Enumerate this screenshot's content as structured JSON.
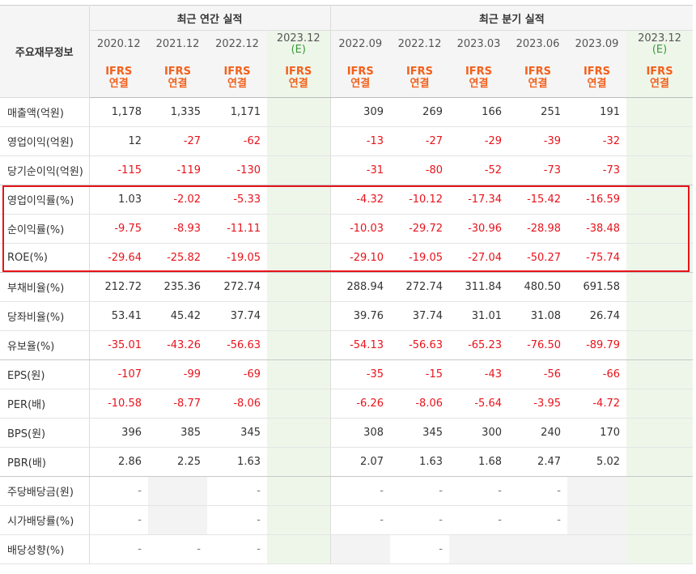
{
  "corner_label": "주요재무정보",
  "groups": {
    "annual": "최근 연간 실적",
    "quarterly": "최근 분기 실적"
  },
  "periods": [
    {
      "date": "2020.12",
      "est": "",
      "type1": "IFRS",
      "type2": "연결",
      "estimate": false
    },
    {
      "date": "2021.12",
      "est": "",
      "type1": "IFRS",
      "type2": "연결",
      "estimate": false
    },
    {
      "date": "2022.12",
      "est": "",
      "type1": "IFRS",
      "type2": "연결",
      "estimate": false
    },
    {
      "date": "2023.12",
      "est": "(E)",
      "type1": "IFRS",
      "type2": "연결",
      "estimate": true
    },
    {
      "date": "2022.09",
      "est": "",
      "type1": "IFRS",
      "type2": "연결",
      "estimate": false
    },
    {
      "date": "2022.12",
      "est": "",
      "type1": "IFRS",
      "type2": "연결",
      "estimate": false
    },
    {
      "date": "2023.03",
      "est": "",
      "type1": "IFRS",
      "type2": "연결",
      "estimate": false
    },
    {
      "date": "2023.06",
      "est": "",
      "type1": "IFRS",
      "type2": "연결",
      "estimate": false
    },
    {
      "date": "2023.09",
      "est": "",
      "type1": "IFRS",
      "type2": "연결",
      "estimate": false
    },
    {
      "date": "2023.12",
      "est": "(E)",
      "type1": "IFRS",
      "type2": "연결",
      "estimate": true
    }
  ],
  "rows": [
    {
      "label": "매출액(억원)",
      "values": [
        "1,178",
        "1,335",
        "1,171",
        "",
        "309",
        "269",
        "166",
        "251",
        "191",
        ""
      ]
    },
    {
      "label": "영업이익(억원)",
      "values": [
        "12",
        "-27",
        "-62",
        "",
        "-13",
        "-27",
        "-29",
        "-39",
        "-32",
        ""
      ]
    },
    {
      "label": "당기순이익(억원)",
      "values": [
        "-115",
        "-119",
        "-130",
        "",
        "-31",
        "-80",
        "-52",
        "-73",
        "-73",
        ""
      ]
    },
    {
      "label": "영업이익률(%)",
      "values": [
        "1.03",
        "-2.02",
        "-5.33",
        "",
        "-4.32",
        "-10.12",
        "-17.34",
        "-15.42",
        "-16.59",
        ""
      ]
    },
    {
      "label": "순이익률(%)",
      "values": [
        "-9.75",
        "-8.93",
        "-11.11",
        "",
        "-10.03",
        "-29.72",
        "-30.96",
        "-28.98",
        "-38.48",
        ""
      ]
    },
    {
      "label": "ROE(%)",
      "values": [
        "-29.64",
        "-25.82",
        "-19.05",
        "",
        "-29.10",
        "-19.05",
        "-27.04",
        "-50.27",
        "-75.74",
        ""
      ]
    },
    {
      "label": "부채비율(%)",
      "values": [
        "212.72",
        "235.36",
        "272.74",
        "",
        "288.94",
        "272.74",
        "311.84",
        "480.50",
        "691.58",
        ""
      ]
    },
    {
      "label": "당좌비율(%)",
      "values": [
        "53.41",
        "45.42",
        "37.74",
        "",
        "39.76",
        "37.74",
        "31.01",
        "31.08",
        "26.74",
        ""
      ]
    },
    {
      "label": "유보율(%)",
      "values": [
        "-35.01",
        "-43.26",
        "-56.63",
        "",
        "-54.13",
        "-56.63",
        "-65.23",
        "-76.50",
        "-89.79",
        ""
      ]
    },
    {
      "label": "EPS(원)",
      "values": [
        "-107",
        "-99",
        "-69",
        "",
        "-35",
        "-15",
        "-43",
        "-56",
        "-66",
        ""
      ]
    },
    {
      "label": "PER(배)",
      "values": [
        "-10.58",
        "-8.77",
        "-8.06",
        "",
        "-6.26",
        "-8.06",
        "-5.64",
        "-3.95",
        "-4.72",
        ""
      ]
    },
    {
      "label": "BPS(원)",
      "values": [
        "396",
        "385",
        "345",
        "",
        "308",
        "345",
        "300",
        "240",
        "170",
        ""
      ]
    },
    {
      "label": "PBR(배)",
      "values": [
        "2.86",
        "2.25",
        "1.63",
        "",
        "2.07",
        "1.63",
        "1.68",
        "2.47",
        "5.02",
        ""
      ]
    },
    {
      "label": "주당배당금(원)",
      "values": [
        "-",
        "",
        "-",
        "",
        "-",
        "-",
        "-",
        "-",
        "",
        ""
      ]
    },
    {
      "label": "시가배당률(%)",
      "values": [
        "-",
        "",
        "-",
        "",
        "-",
        "-",
        "-",
        "-",
        "",
        ""
      ]
    },
    {
      "label": "배당성향(%)",
      "values": [
        "-",
        "-",
        "-",
        "",
        "",
        "-",
        "",
        "",
        "",
        ""
      ]
    }
  ],
  "gray_cells": [
    [
      13,
      1
    ],
    [
      14,
      1
    ],
    [
      13,
      8
    ],
    [
      14,
      8
    ],
    [
      15,
      4
    ],
    [
      15,
      6
    ],
    [
      15,
      7
    ],
    [
      15,
      8
    ]
  ],
  "separator_after_rows": [
    2,
    5,
    8,
    12
  ],
  "highlight_rows": [
    3,
    4,
    5
  ],
  "colors": {
    "negative": "#e8131b",
    "ifrs": "#f3601b",
    "estimate_bg": "#eef6ea",
    "estimate_text": "#3a9a3a",
    "highlight": "#e6141b"
  }
}
